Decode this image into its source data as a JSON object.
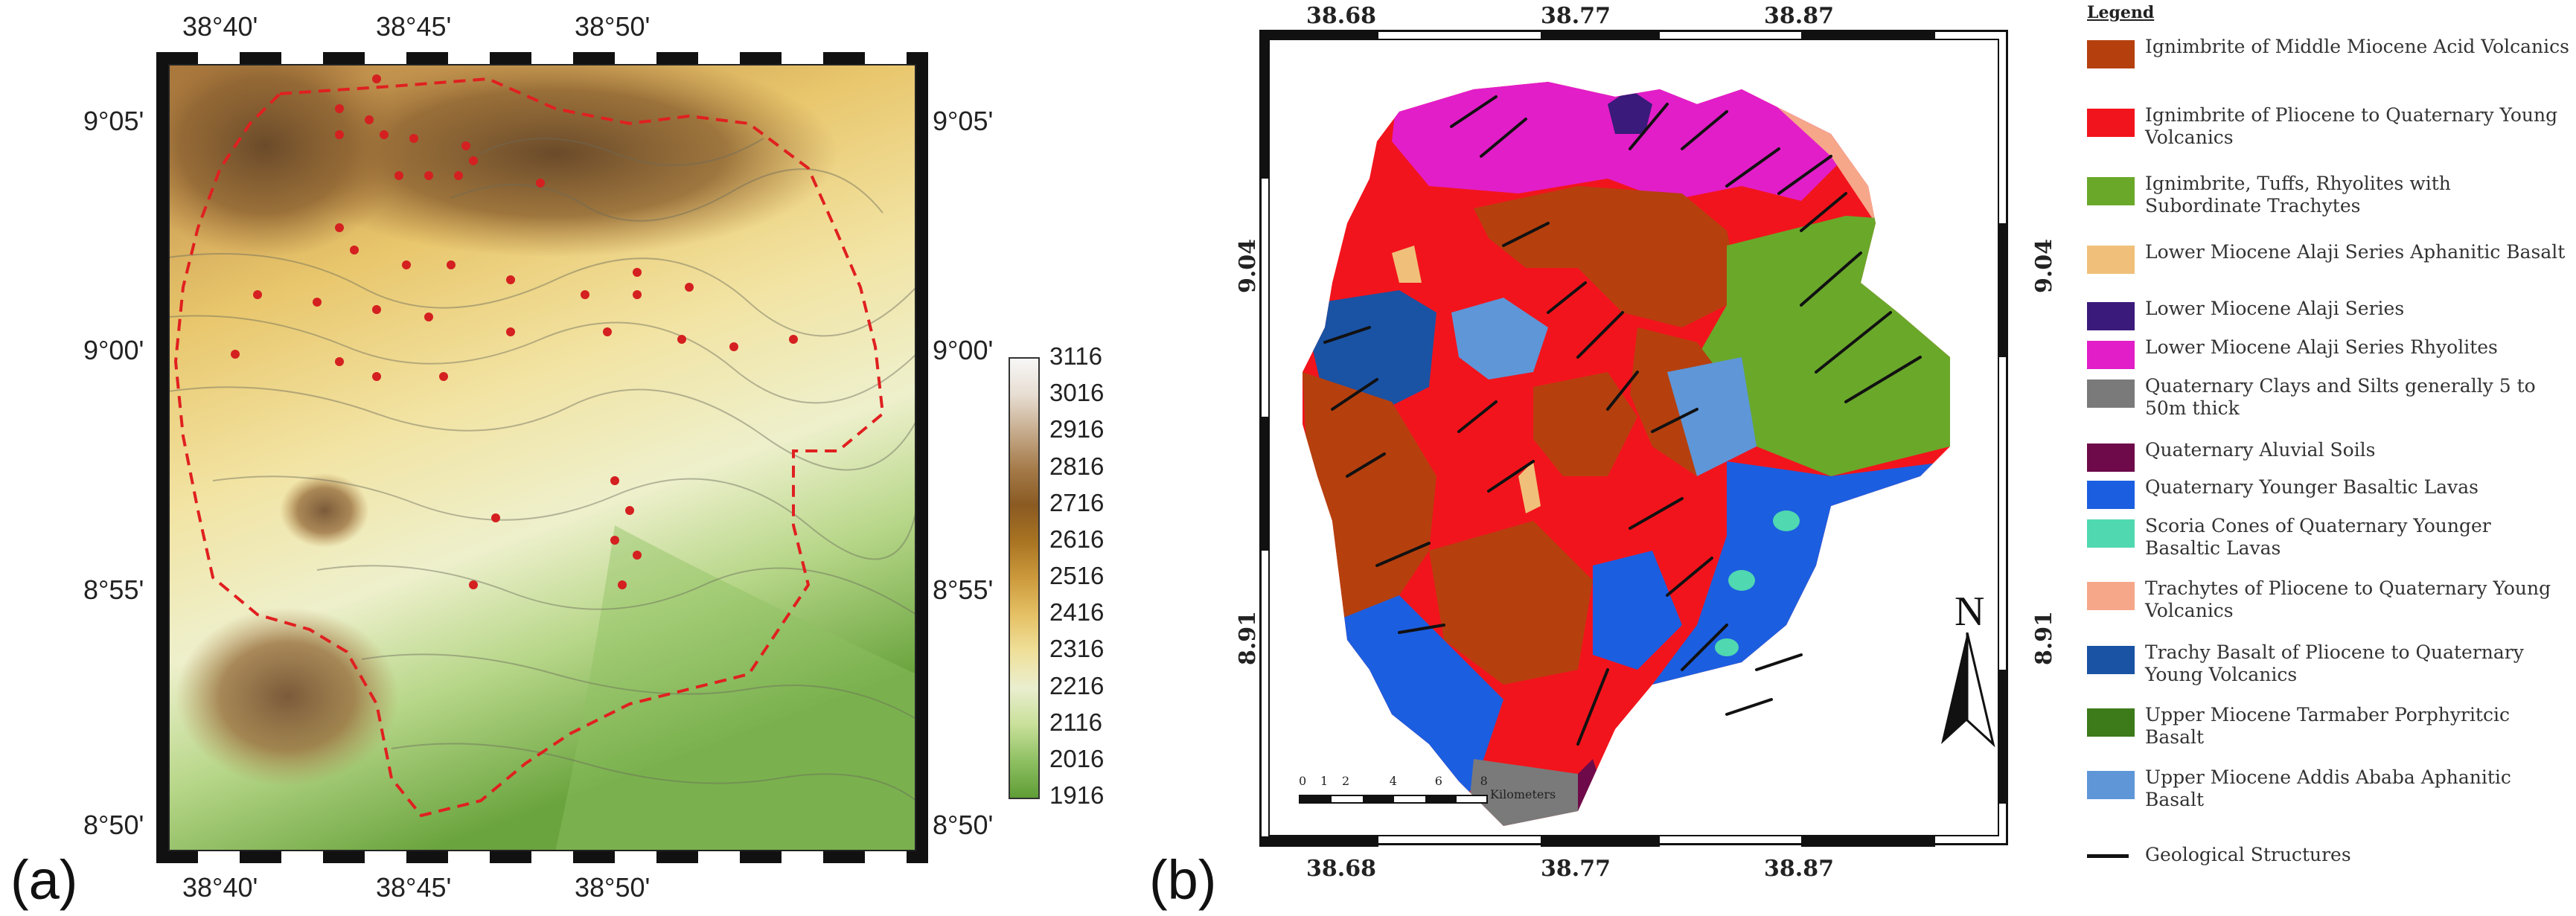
{
  "panels": {
    "a": {
      "label": "(a)",
      "lon_ticks": [
        "38°40'",
        "38°45'",
        "38°50'"
      ],
      "lat_ticks": [
        "9°05'",
        "9°00'",
        "8°55'",
        "8°50'"
      ],
      "colorbar": {
        "values": [
          "3116",
          "3016",
          "2916",
          "2816",
          "2716",
          "2616",
          "2516",
          "2416",
          "2316",
          "2216",
          "2116",
          "2016",
          "1916"
        ],
        "colors": [
          "#f7f7f7",
          "#e7ddd1",
          "#c6ab8c",
          "#a57b4a",
          "#8a5a22",
          "#a97422",
          "#cc9a3c",
          "#e5c065",
          "#efe09a",
          "#eaeecf",
          "#c9e09a",
          "#8ec062",
          "#5f9d36"
        ]
      }
    },
    "b": {
      "label": "(b)",
      "lon_ticks": [
        "38.68",
        "38.77",
        "38.87"
      ],
      "lat_ticks": [
        "9.04",
        "8.91"
      ],
      "scale_bar": {
        "ticks": [
          "0",
          "1",
          "2",
          "4",
          "6",
          "8"
        ],
        "unit": "Kilometers"
      },
      "north_label": "N",
      "legend": {
        "title": "Legend",
        "items": [
          {
            "label": "Ignimbrite of Middle Miocene Acid Volcanics",
            "color": "#b5400e"
          },
          {
            "label": "Ignimbrite of Pliocene to Quaternary Young Volcanics",
            "color": "#f2141c"
          },
          {
            "label": "Ignimbrite, Tuffs, Rhyolites with Subordinate Trachytes",
            "color": "#6aa82a"
          },
          {
            "label": "Lower Miocene Alaji Series Aphanitic Basalt",
            "color": "#f0c07a"
          },
          {
            "label": "Lower Miocene Alaji Series",
            "color": "#3a1a7a"
          },
          {
            "label": "Lower Miocene Alaji Series Rhyolites",
            "color": "#e21ec8"
          },
          {
            "label": "Quaternary Clays and Silts generally 5 to 50m thick",
            "color": "#7a7a7a"
          },
          {
            "label": "Quaternary Aluvial Soils",
            "color": "#6e0a4a"
          },
          {
            "label": "Quaternary Younger Basaltic Lavas",
            "color": "#1c5ee0"
          },
          {
            "label": "Scoria Cones of Quaternary Younger Basaltic Lavas",
            "color": "#50d8b0"
          },
          {
            "label": "Trachytes of Pliocene to Quaternary Young Volcanics",
            "color": "#f6a78a"
          },
          {
            "label": "Trachy Basalt of Pliocene to Quaternary Young Volcanics",
            "color": "#1a52a4"
          },
          {
            "label": "Upper Miocene Tarmaber Porphyritcic Basalt",
            "color": "#3c7a1a"
          },
          {
            "label": "Upper Miocene Addis Ababa Aphanitic Basalt",
            "color": "#5e96d8"
          },
          {
            "label": "Geological Structures",
            "color": "#111111",
            "kind": "line"
          }
        ]
      }
    }
  }
}
